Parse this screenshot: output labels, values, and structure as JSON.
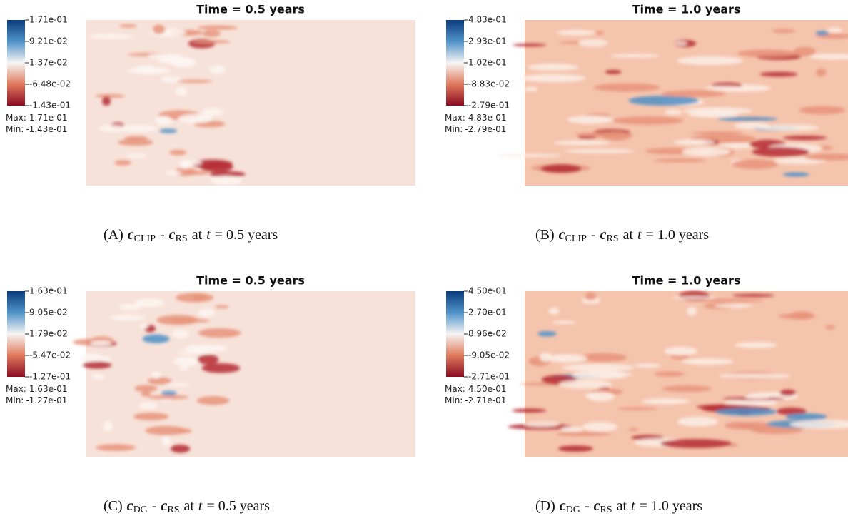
{
  "panels": [
    {
      "title": "Time = 0.5 years",
      "colorbar_ticks": [
        "1.71e-01",
        "9.21e-02",
        "1.37e-02",
        "-6.48e-02",
        "-1.43e-01"
      ],
      "max_label": "Max:",
      "max": "1.71e-01",
      "min_label": "Min:",
      "min": "-1.43e-01",
      "caption": {
        "tag": "(A)",
        "var_a": "c",
        "sub_a": "CLIP",
        "op": "-",
        "var_b": "c",
        "sub_b": "RS",
        "at": "at",
        "t": "t",
        "rest": "= 0.5 years"
      }
    },
    {
      "title": "Time = 1.0 years",
      "colorbar_ticks": [
        "4.83e-01",
        "2.93e-01",
        "1.02e-01",
        "-8.83e-02",
        "-2.79e-01"
      ],
      "max_label": "Max:",
      "max": "4.83e-01",
      "min_label": "Min:",
      "min": "-2.79e-01",
      "caption": {
        "tag": "(B)",
        "var_a": "c",
        "sub_a": "CLIP",
        "op": "-",
        "var_b": "c",
        "sub_b": "RS",
        "at": "at",
        "t": "t",
        "rest": "= 1.0 years"
      }
    },
    {
      "title": "Time = 0.5 years",
      "colorbar_ticks": [
        "1.63e-01",
        "9.05e-02",
        "1.79e-02",
        "-5.47e-02",
        "-1.27e-01"
      ],
      "max_label": "Max:",
      "max": "1.63e-01",
      "min_label": "Min:",
      "min": "-1.27e-01",
      "caption": {
        "tag": "(C)",
        "var_a": "c",
        "sub_a": "DG",
        "op": "-",
        "var_b": "c",
        "sub_b": "RS",
        "at": "at",
        "t": "t",
        "rest": "= 0.5 years"
      }
    },
    {
      "title": "Time = 1.0 years",
      "colorbar_ticks": [
        "4.50e-01",
        "2.70e-01",
        "8.96e-02",
        "-9.05e-02",
        "-2.71e-01"
      ],
      "max_label": "Max:",
      "max": "4.50e-01",
      "min_label": "Min:",
      "min": "-2.71e-01",
      "caption": {
        "tag": "(D)",
        "var_a": "c",
        "sub_a": "DG",
        "op": "-",
        "var_b": "c",
        "sub_b": "RS",
        "at": "at",
        "t": "t",
        "rest": "= 1.0 years"
      }
    }
  ]
}
